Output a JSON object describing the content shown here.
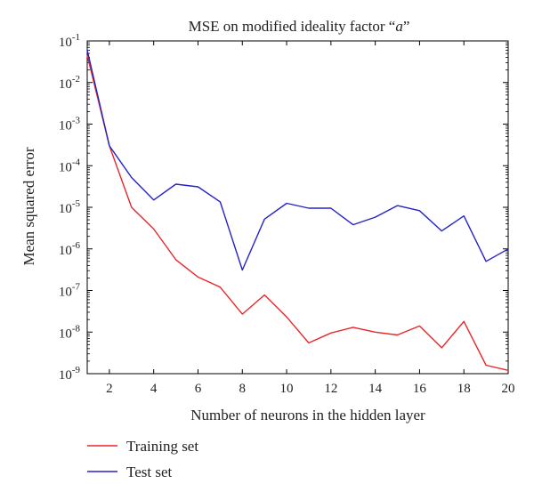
{
  "chart_data": {
    "type": "line",
    "title": "MSE on modified ideality factor “a”",
    "title_prefix": "MSE on modified ideality factor “",
    "title_var": "a",
    "title_suffix": "”",
    "xlabel": "Number of neurons in the hidden layer",
    "ylabel": "Mean squared error",
    "xlim": [
      1,
      20
    ],
    "ylim": [
      1e-09,
      0.1
    ],
    "yscale": "log",
    "grid": false,
    "legend_position": "below",
    "x_ticks": [
      "2",
      "4",
      "6",
      "8",
      "10",
      "12",
      "14",
      "16",
      "18",
      "20"
    ],
    "y_tick_exponents": [
      "-1",
      "-2",
      "-3",
      "-4",
      "-5",
      "-6",
      "-7",
      "-8",
      "-9"
    ],
    "x": [
      1,
      2,
      3,
      4,
      5,
      6,
      7,
      8,
      9,
      10,
      11,
      12,
      13,
      14,
      15,
      16,
      17,
      18,
      19,
      20
    ],
    "series": [
      {
        "name": "Training set",
        "color": "#e8262a",
        "values": [
          0.045,
          0.0003,
          1e-05,
          3e-06,
          5.5e-07,
          2.1e-07,
          1.2e-07,
          2.7e-08,
          7.8e-08,
          2.3e-08,
          5.5e-09,
          9.5e-09,
          1.3e-08,
          1e-08,
          8.5e-09,
          1.4e-08,
          4.2e-09,
          1.8e-08,
          1.6e-09,
          1.2e-09
        ]
      },
      {
        "name": "Test set",
        "color": "#2323c8",
        "values": [
          0.06,
          0.0003,
          5.2e-05,
          1.5e-05,
          3.6e-05,
          3.1e-05,
          1.35e-05,
          3.1e-07,
          5.2e-06,
          1.25e-05,
          9.5e-06,
          9.5e-06,
          3.8e-06,
          5.8e-06,
          1.1e-05,
          8.3e-06,
          2.7e-06,
          6.2e-06,
          5e-07,
          1e-06
        ]
      }
    ]
  }
}
